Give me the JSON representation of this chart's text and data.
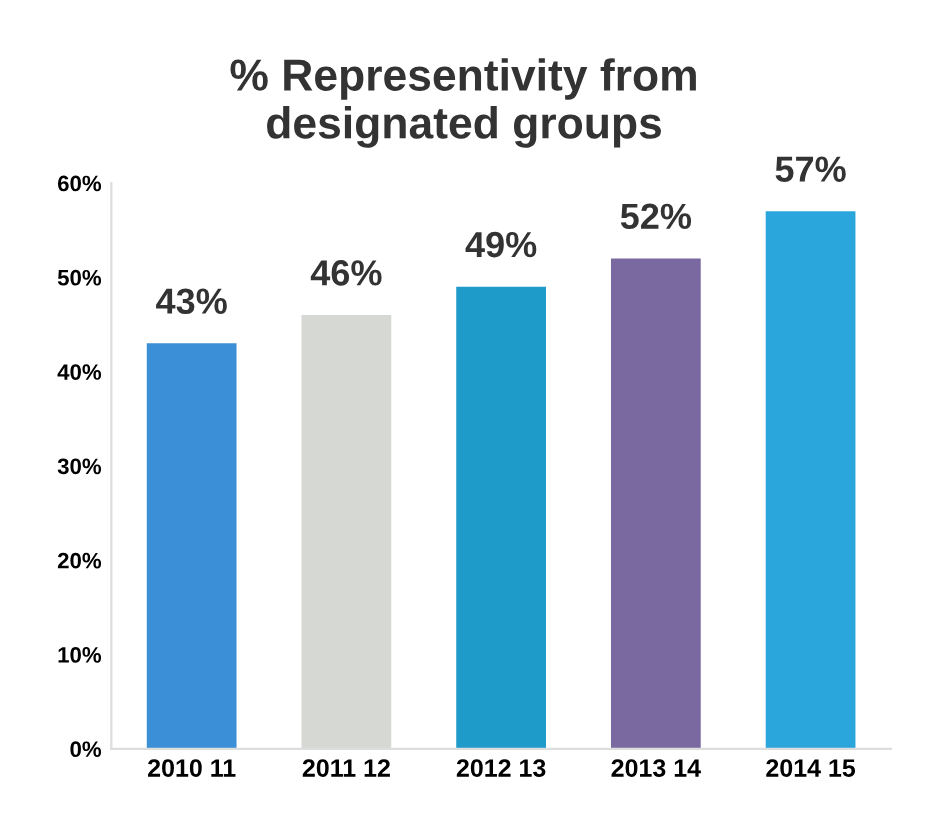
{
  "chart_data": {
    "type": "bar",
    "title": "% Representivity from\ndesignated groups",
    "categories": [
      "2010 11",
      "2011 12",
      "2012 13",
      "2013 14",
      "2014 15"
    ],
    "values": [
      43,
      46,
      49,
      52,
      57
    ],
    "colors": [
      "#3a8fd6",
      "#d6d8d4",
      "#1f9bc9",
      "#7a68a0",
      "#2aa6dd"
    ],
    "value_labels": [
      "43%",
      "46%",
      "49%",
      "52%",
      "57%"
    ],
    "ylim": [
      0,
      60
    ],
    "yticks": [
      {
        "value": 0,
        "label": "0%"
      },
      {
        "value": 10,
        "label": "10%"
      },
      {
        "value": 20,
        "label": "20%"
      },
      {
        "value": 30,
        "label": "30%"
      },
      {
        "value": 40,
        "label": "40%"
      },
      {
        "value": 50,
        "label": "50%"
      },
      {
        "value": 60,
        "label": "60%"
      }
    ],
    "grid": false
  }
}
